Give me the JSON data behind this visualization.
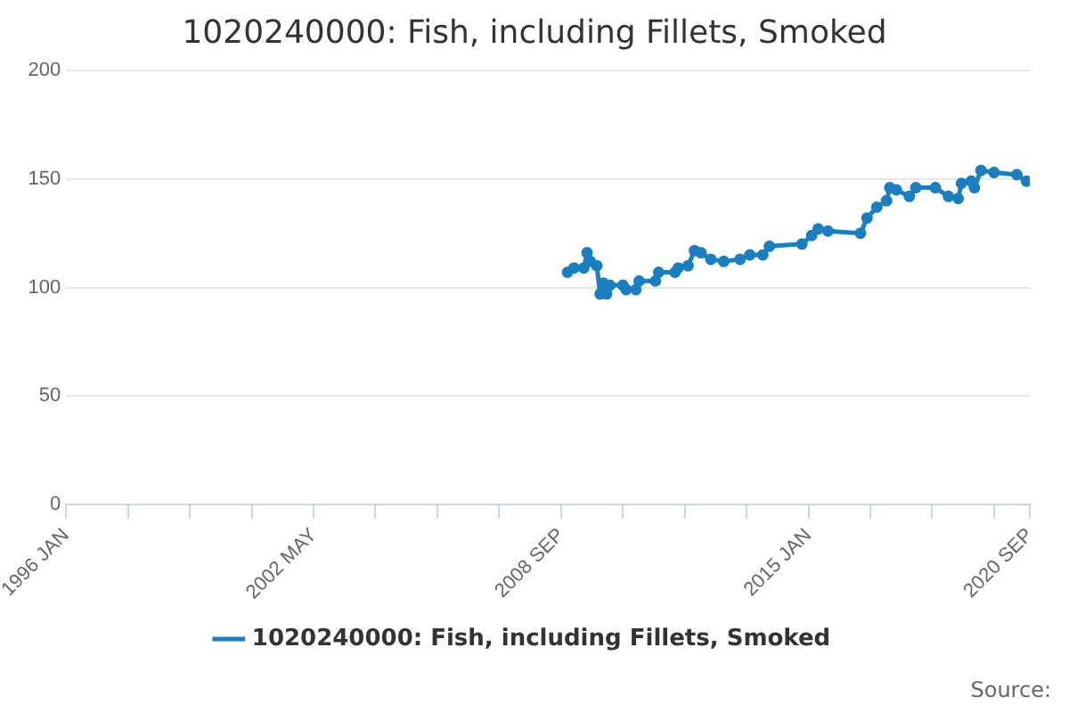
{
  "chart_data": {
    "type": "line",
    "title": "1020240000: Fish, including Fillets, Smoked",
    "x": [
      "2008-11",
      "2009-01",
      "2009-04",
      "2009-05",
      "2009-06",
      "2009-08",
      "2009-09",
      "2009-10",
      "2009-11",
      "2009-12",
      "2010-04",
      "2010-05",
      "2010-08",
      "2010-09",
      "2011-02",
      "2011-03",
      "2011-08",
      "2011-09",
      "2011-12",
      "2012-02",
      "2012-04",
      "2012-07",
      "2012-11",
      "2013-04",
      "2013-07",
      "2013-11",
      "2014-01",
      "2014-11",
      "2015-02",
      "2015-04",
      "2015-07",
      "2016-05",
      "2016-07",
      "2016-10",
      "2017-01",
      "2017-02",
      "2017-04",
      "2017-08",
      "2017-10",
      "2018-04",
      "2018-08",
      "2018-11",
      "2018-12",
      "2019-03",
      "2019-04",
      "2019-06",
      "2019-10",
      "2020-05",
      "2020-08"
    ],
    "series": [
      {
        "name": "1020240000: Fish, including Fillets, Smoked",
        "color": "#1a7fc1",
        "values": [
          107,
          109,
          109,
          116,
          112,
          110,
          97,
          102,
          97,
          101,
          101,
          99,
          99,
          103,
          103,
          107,
          107,
          109,
          110,
          117,
          116,
          113,
          112,
          113,
          115,
          115,
          119,
          120,
          124,
          127,
          126,
          125,
          132,
          137,
          140,
          146,
          145,
          142,
          146,
          146,
          142,
          141,
          148,
          149,
          146,
          154,
          153,
          152,
          149
        ]
      }
    ],
    "xlim": [
      "1996-01",
      "2020-09"
    ],
    "xticks": [
      {
        "value": "1996-01",
        "label": "1996 JAN"
      },
      {
        "value": "1997-08",
        "label": null
      },
      {
        "value": "1999-03",
        "label": null
      },
      {
        "value": "2000-10",
        "label": null
      },
      {
        "value": "2002-05",
        "label": "2002 MAY"
      },
      {
        "value": "2003-12",
        "label": null
      },
      {
        "value": "2005-07",
        "label": null
      },
      {
        "value": "2007-02",
        "label": null
      },
      {
        "value": "2008-09",
        "label": "2008 SEP"
      },
      {
        "value": "2010-04",
        "label": null
      },
      {
        "value": "2011-11",
        "label": null
      },
      {
        "value": "2013-06",
        "label": null
      },
      {
        "value": "2015-01",
        "label": "2015 JAN"
      },
      {
        "value": "2016-08",
        "label": null
      },
      {
        "value": "2018-03",
        "label": null
      },
      {
        "value": "2019-10",
        "label": null
      },
      {
        "value": "2020-09",
        "label": "2020 SEP"
      }
    ],
    "ylim": [
      0,
      200
    ],
    "yticks": [
      0,
      50,
      100,
      150,
      200
    ],
    "grid": "y",
    "legend": "bottom",
    "marker": "circle",
    "line_style": "solid",
    "annotations": [
      "Source:"
    ]
  }
}
